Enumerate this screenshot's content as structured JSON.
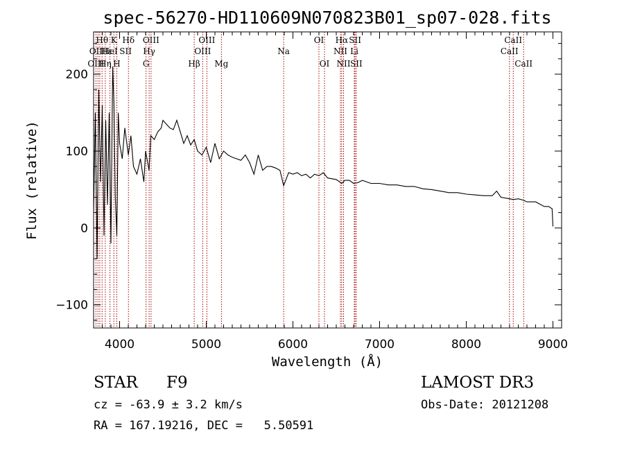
{
  "chart_data": {
    "type": "line",
    "title": "spec-56270-HD110609N070823B01_sp07-028.fits",
    "xlabel": "Wavelength (Å)",
    "ylabel": "Flux (relative)",
    "xlim": [
      3700,
      9100
    ],
    "ylim": [
      -130,
      255
    ],
    "x_ticks": [
      4000,
      5000,
      6000,
      7000,
      8000,
      9000
    ],
    "y_ticks": [
      -100,
      0,
      100,
      200
    ],
    "series": [
      {
        "name": "spectrum",
        "x": [
          3700,
          3720,
          3740,
          3760,
          3780,
          3800,
          3820,
          3840,
          3860,
          3880,
          3900,
          3920,
          3935,
          3950,
          3968,
          3985,
          4000,
          4030,
          4060,
          4101,
          4130,
          4160,
          4200,
          4240,
          4280,
          4300,
          4340,
          4360,
          4400,
          4440,
          4480,
          4500,
          4540,
          4580,
          4620,
          4660,
          4700,
          4740,
          4780,
          4820,
          4861,
          4900,
          4950,
          5000,
          5050,
          5100,
          5150,
          5200,
          5250,
          5300,
          5350,
          5400,
          5450,
          5500,
          5550,
          5600,
          5650,
          5700,
          5750,
          5800,
          5850,
          5893,
          5950,
          6000,
          6050,
          6100,
          6150,
          6200,
          6250,
          6300,
          6350,
          6400,
          6450,
          6500,
          6563,
          6600,
          6650,
          6700,
          6750,
          6800,
          6900,
          7000,
          7100,
          7200,
          7300,
          7400,
          7500,
          7600,
          7700,
          7800,
          7900,
          8000,
          8100,
          8200,
          8300,
          8350,
          8400,
          8500,
          8542,
          8600,
          8662,
          8700,
          8800,
          8900,
          8950,
          8990,
          9000
        ],
        "values": [
          20,
          150,
          -40,
          180,
          60,
          160,
          -10,
          140,
          30,
          150,
          -20,
          210,
          160,
          40,
          -10,
          150,
          110,
          90,
          130,
          95,
          120,
          80,
          70,
          90,
          60,
          100,
          75,
          120,
          115,
          125,
          130,
          140,
          135,
          130,
          128,
          140,
          125,
          110,
          120,
          108,
          115,
          100,
          95,
          105,
          85,
          110,
          90,
          100,
          95,
          92,
          90,
          88,
          95,
          85,
          70,
          95,
          75,
          80,
          80,
          78,
          75,
          55,
          72,
          70,
          72,
          68,
          70,
          65,
          70,
          68,
          72,
          65,
          64,
          63,
          58,
          62,
          62,
          58,
          59,
          62,
          58,
          58,
          56,
          56,
          54,
          54,
          51,
          50,
          48,
          46,
          46,
          44,
          43,
          42,
          42,
          48,
          40,
          38,
          37,
          38,
          36,
          34,
          34,
          28,
          28,
          25,
          2
        ]
      }
    ],
    "line_labels": [
      {
        "text": "Hθ",
        "x": 3798,
        "row": 0
      },
      {
        "text": "K",
        "x": 3934,
        "row": 0
      },
      {
        "text": "Hδ",
        "x": 4102,
        "row": 0
      },
      {
        "text": "OIII",
        "x": 4363,
        "row": 0
      },
      {
        "text": "OIII",
        "x": 5007,
        "row": 0
      },
      {
        "text": "OI",
        "x": 6300,
        "row": 0
      },
      {
        "text": "Hα",
        "x": 6563,
        "row": 0
      },
      {
        "text": "SII",
        "x": 6717,
        "row": 0
      },
      {
        "text": "CaII",
        "x": 8542,
        "row": 0
      },
      {
        "text": "OII",
        "x": 3727,
        "row": 1
      },
      {
        "text": "Hε",
        "x": 3850,
        "row": 1
      },
      {
        "text": "HeI",
        "x": 3889,
        "row": 1
      },
      {
        "text": "SII",
        "x": 4069,
        "row": 1
      },
      {
        "text": "Hγ",
        "x": 4341,
        "row": 1
      },
      {
        "text": "OIII",
        "x": 4959,
        "row": 1
      },
      {
        "text": "Na",
        "x": 5893,
        "row": 1
      },
      {
        "text": "NII",
        "x": 6548,
        "row": 1
      },
      {
        "text": "Li",
        "x": 6708,
        "row": 1
      },
      {
        "text": "CaII",
        "x": 8498,
        "row": 1
      },
      {
        "text": "OIII",
        "x": 3727,
        "row": 2
      },
      {
        "text": "Hη",
        "x": 3835,
        "row": 2
      },
      {
        "text": "H",
        "x": 3968,
        "row": 2
      },
      {
        "text": "G",
        "x": 4305,
        "row": 2
      },
      {
        "text": "Hβ",
        "x": 4861,
        "row": 2
      },
      {
        "text": "Mg",
        "x": 5175,
        "row": 2
      },
      {
        "text": "OI",
        "x": 6364,
        "row": 2
      },
      {
        "text": "NII",
        "x": 6584,
        "row": 2
      },
      {
        "text": "SII",
        "x": 6731,
        "row": 2
      },
      {
        "text": "CaII",
        "x": 8662,
        "row": 2
      }
    ],
    "line_positions": [
      3727,
      3750,
      3771,
      3798,
      3835,
      3889,
      3934,
      3968,
      4102,
      4305,
      4341,
      4363,
      4861,
      4959,
      5007,
      5175,
      5893,
      6300,
      6364,
      6548,
      6563,
      6584,
      6708,
      6717,
      6731,
      8498,
      8542,
      8662
    ],
    "line_color": "#a00000"
  },
  "info": {
    "object_type": "STAR",
    "subclass": "F9",
    "survey": "LAMOST DR3",
    "redshift": "cz = -63.9 ± 3.2 km/s",
    "obs_date": "Obs-Date: 20121208",
    "coords": "RA = 167.19216, DEC =   5.50591"
  }
}
